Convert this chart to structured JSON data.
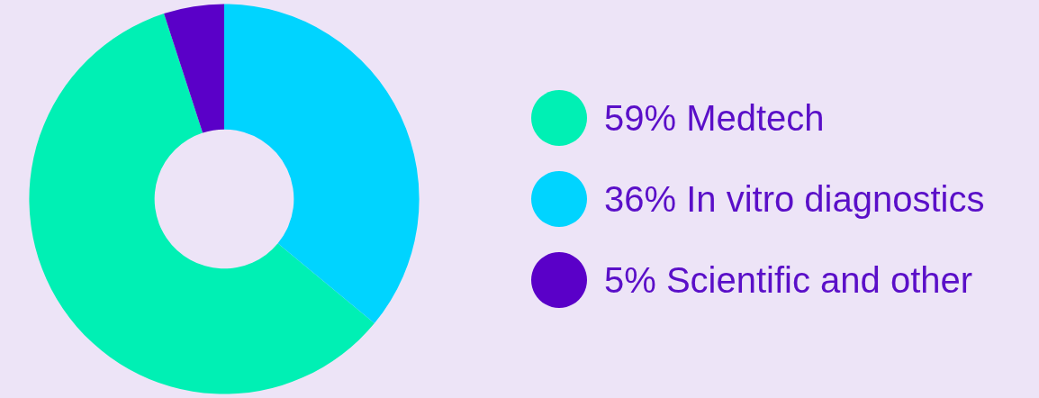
{
  "chart_data": {
    "type": "donut",
    "categories": [
      "59% Medtech",
      "36% In vitro diagnostics",
      "5% Scientific and other"
    ],
    "values": [
      59,
      36,
      5
    ],
    "colors": [
      "#00f0b4",
      "#00d4ff",
      "#5a00c8"
    ],
    "legend": "right"
  }
}
